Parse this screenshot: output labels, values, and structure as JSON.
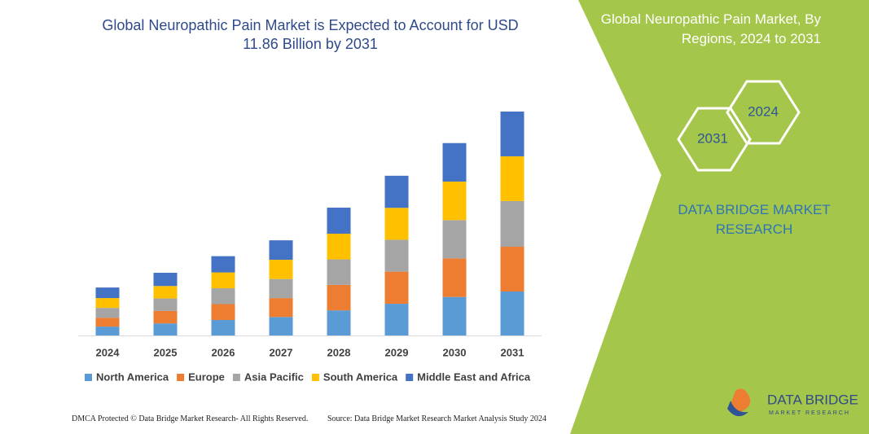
{
  "chart_data": {
    "type": "stacked_bar",
    "title": "Global Neuropathic Pain Market is Expected to Account for USD 11.86 Billion by 2031",
    "categories": [
      "2024",
      "2025",
      "2026",
      "2027",
      "2028",
      "2029",
      "2030",
      "2031"
    ],
    "series": [
      {
        "name": "North America",
        "color": "#5b9bd5",
        "values": [
          0.47,
          0.64,
          0.82,
          0.98,
          1.33,
          1.68,
          2.04,
          2.33
        ]
      },
      {
        "name": "Europe",
        "color": "#ed7d31",
        "values": [
          0.47,
          0.66,
          0.84,
          1.0,
          1.35,
          1.7,
          2.04,
          2.37
        ]
      },
      {
        "name": "Asia Pacific",
        "color": "#a5a5a5",
        "values": [
          0.52,
          0.66,
          0.84,
          1.01,
          1.35,
          1.69,
          2.03,
          2.42
        ]
      },
      {
        "name": "South America",
        "color": "#ffc000",
        "values": [
          0.52,
          0.66,
          0.84,
          1.02,
          1.36,
          1.69,
          2.04,
          2.37
        ]
      },
      {
        "name": "Middle East and Africa",
        "color": "#4472c4",
        "values": [
          0.56,
          0.7,
          0.86,
          1.03,
          1.38,
          1.7,
          2.04,
          2.37
        ]
      }
    ]
  },
  "side_panel": {
    "title": "Global Neuropathic Pain Market, By Regions, 2024 to 2031",
    "hexagons": [
      "2024",
      "2031"
    ],
    "brand": "DATA BRIDGE MARKET RESEARCH"
  },
  "footer": {
    "copyright": "DMCA Protected © Data Bridge Market Research- All Rights Reserved.",
    "source": "Source: Data Bridge Market Research  Market Analysis Study 2024"
  },
  "logo": {
    "name": "DATA BRIDGE",
    "tagline": "MARKET RESEARCH"
  }
}
